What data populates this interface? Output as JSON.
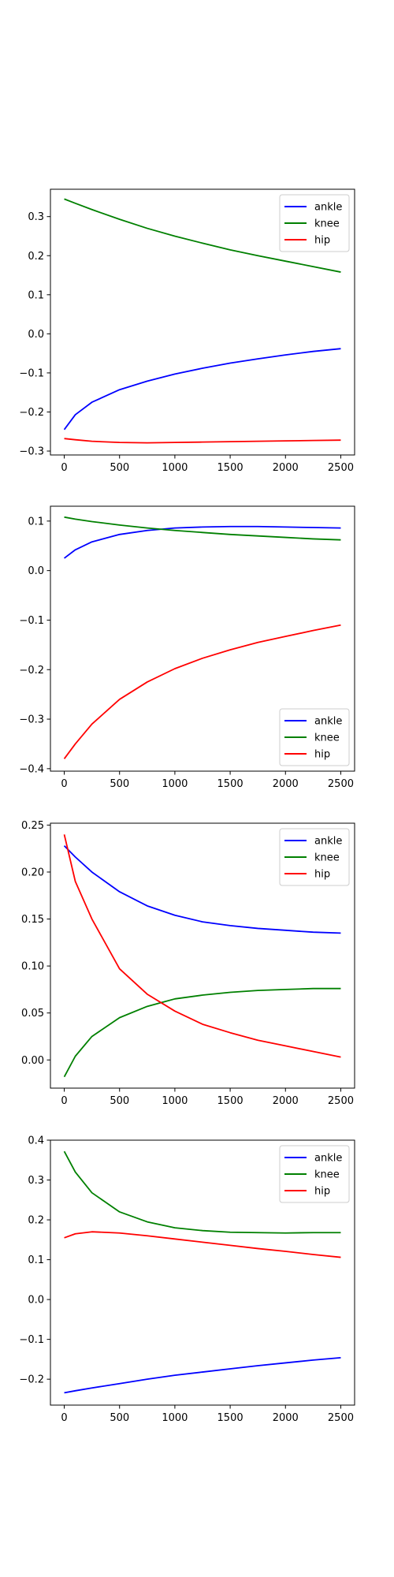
{
  "chart_data": [
    {
      "type": "line",
      "xlim": [
        -125,
        2625
      ],
      "ylim": [
        -0.31,
        0.37
      ],
      "xticks": [
        0,
        500,
        1000,
        1500,
        2000,
        2500
      ],
      "xtick_labels": [
        "0",
        "500",
        "1000",
        "1500",
        "2000",
        "2500"
      ],
      "yticks": [
        -0.3,
        -0.2,
        -0.1,
        0.0,
        0.1,
        0.2,
        0.3
      ],
      "ytick_labels": [
        "−0.3",
        "−0.2",
        "−0.1",
        "0.0",
        "0.1",
        "0.2",
        "0.3"
      ],
      "legend_position": "top-right",
      "grid": false,
      "x": [
        0,
        100,
        250,
        500,
        750,
        1000,
        1250,
        1500,
        1750,
        2000,
        2250,
        2500
      ],
      "series": [
        {
          "name": "ankle",
          "color": "#0000ff",
          "values": [
            -0.245,
            -0.207,
            -0.175,
            -0.143,
            -0.121,
            -0.103,
            -0.088,
            -0.075,
            -0.064,
            -0.054,
            -0.045,
            -0.038
          ]
        },
        {
          "name": "knee",
          "color": "#008000",
          "values": [
            0.345,
            0.334,
            0.318,
            0.293,
            0.27,
            0.25,
            0.232,
            0.215,
            0.2,
            0.186,
            0.172,
            0.158
          ]
        },
        {
          "name": "hip",
          "color": "#ff0000",
          "values": [
            -0.268,
            -0.271,
            -0.275,
            -0.278,
            -0.279,
            -0.278,
            -0.277,
            -0.276,
            -0.275,
            -0.274,
            -0.273,
            -0.272
          ]
        }
      ]
    },
    {
      "type": "line",
      "xlim": [
        -125,
        2625
      ],
      "ylim": [
        -0.405,
        0.13
      ],
      "xticks": [
        0,
        500,
        1000,
        1500,
        2000,
        2500
      ],
      "xtick_labels": [
        "0",
        "500",
        "1000",
        "1500",
        "2000",
        "2500"
      ],
      "yticks": [
        -0.4,
        -0.3,
        -0.2,
        -0.1,
        0.0,
        0.1
      ],
      "ytick_labels": [
        "−0.4",
        "−0.3",
        "−0.2",
        "−0.1",
        "0.0",
        "0.1"
      ],
      "legend_position": "bottom-right",
      "grid": false,
      "x": [
        0,
        100,
        250,
        500,
        750,
        1000,
        1250,
        1500,
        1750,
        2000,
        2250,
        2500
      ],
      "series": [
        {
          "name": "ankle",
          "color": "#0000ff",
          "values": [
            0.025,
            0.042,
            0.058,
            0.073,
            0.081,
            0.086,
            0.088,
            0.089,
            0.089,
            0.088,
            0.087,
            0.086
          ]
        },
        {
          "name": "knee",
          "color": "#008000",
          "values": [
            0.108,
            0.104,
            0.099,
            0.092,
            0.086,
            0.081,
            0.077,
            0.073,
            0.07,
            0.067,
            0.064,
            0.062
          ]
        },
        {
          "name": "hip",
          "color": "#ff0000",
          "values": [
            -0.38,
            -0.35,
            -0.31,
            -0.26,
            -0.225,
            -0.198,
            -0.177,
            -0.16,
            -0.145,
            -0.133,
            -0.121,
            -0.11
          ]
        }
      ]
    },
    {
      "type": "line",
      "xlim": [
        -125,
        2625
      ],
      "ylim": [
        -0.03,
        0.252
      ],
      "xticks": [
        0,
        500,
        1000,
        1500,
        2000,
        2500
      ],
      "xtick_labels": [
        "0",
        "500",
        "1000",
        "1500",
        "2000",
        "2500"
      ],
      "yticks": [
        0.0,
        0.05,
        0.1,
        0.15,
        0.2,
        0.25
      ],
      "ytick_labels": [
        "0.00",
        "0.05",
        "0.10",
        "0.15",
        "0.20",
        "0.25"
      ],
      "legend_position": "top-right",
      "grid": false,
      "x": [
        0,
        100,
        250,
        500,
        750,
        1000,
        1250,
        1500,
        1750,
        2000,
        2250,
        2500
      ],
      "series": [
        {
          "name": "ankle",
          "color": "#0000ff",
          "values": [
            0.228,
            0.216,
            0.2,
            0.179,
            0.164,
            0.154,
            0.147,
            0.143,
            0.14,
            0.138,
            0.136,
            0.135
          ]
        },
        {
          "name": "knee",
          "color": "#008000",
          "values": [
            -0.018,
            0.004,
            0.025,
            0.045,
            0.057,
            0.065,
            0.069,
            0.072,
            0.074,
            0.075,
            0.076,
            0.076
          ]
        },
        {
          "name": "hip",
          "color": "#ff0000",
          "values": [
            0.24,
            0.19,
            0.15,
            0.097,
            0.07,
            0.052,
            0.038,
            0.029,
            0.021,
            0.015,
            0.009,
            0.003
          ]
        }
      ]
    },
    {
      "type": "line",
      "xlim": [
        -125,
        2625
      ],
      "ylim": [
        -0.265,
        0.4
      ],
      "xticks": [
        0,
        500,
        1000,
        1500,
        2000,
        2500
      ],
      "xtick_labels": [
        "0",
        "500",
        "1000",
        "1500",
        "2000",
        "2500"
      ],
      "yticks": [
        -0.2,
        -0.1,
        0.0,
        0.1,
        0.2,
        0.3,
        0.4
      ],
      "ytick_labels": [
        "−0.2",
        "−0.1",
        "0.0",
        "0.1",
        "0.2",
        "0.3",
        "0.4"
      ],
      "legend_position": "top-right",
      "grid": false,
      "x": [
        0,
        100,
        250,
        500,
        750,
        1000,
        1250,
        1500,
        1750,
        2000,
        2250,
        2500
      ],
      "series": [
        {
          "name": "ankle",
          "color": "#0000ff",
          "values": [
            -0.234,
            -0.229,
            -0.222,
            -0.211,
            -0.2,
            -0.19,
            -0.182,
            -0.174,
            -0.166,
            -0.159,
            -0.152,
            -0.146
          ]
        },
        {
          "name": "knee",
          "color": "#008000",
          "values": [
            0.372,
            0.32,
            0.268,
            0.22,
            0.195,
            0.18,
            0.173,
            0.169,
            0.168,
            0.167,
            0.168,
            0.168
          ]
        },
        {
          "name": "hip",
          "color": "#ff0000",
          "values": [
            0.155,
            0.165,
            0.17,
            0.167,
            0.16,
            0.152,
            0.144,
            0.136,
            0.128,
            0.121,
            0.113,
            0.106
          ]
        }
      ]
    }
  ]
}
